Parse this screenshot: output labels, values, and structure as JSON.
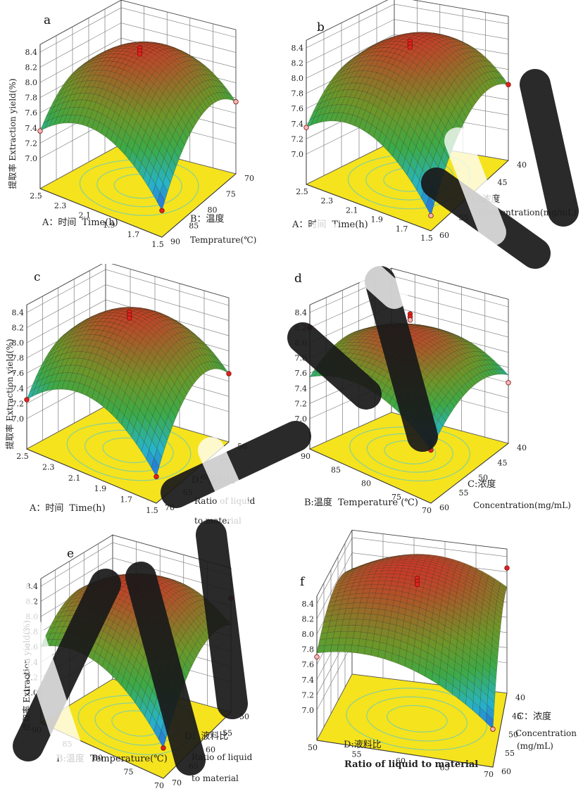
{
  "chart_data": [
    {
      "type": "surface3d",
      "panel": "a",
      "zlabel": "提取率 Extraction yield(%)",
      "zticks": [
        "7.0",
        "7.2",
        "7.4",
        "7.6",
        "7.8",
        "8.0",
        "8.2",
        "8.4"
      ],
      "zlim": [
        6.6,
        8.5
      ],
      "x_axis": {
        "label_cn": "A：时间",
        "label_en": "Time(h)",
        "ticks": [
          "2.5",
          "2.3",
          "2.1",
          "1.9",
          "1.7",
          "1.5"
        ],
        "range": [
          2.5,
          1.5
        ]
      },
      "y_axis": {
        "label_cn": "B：温度",
        "label_en": "Temprature(℃)",
        "ticks": [
          "90",
          "85",
          "80",
          "75",
          "70"
        ],
        "range": [
          90,
          70
        ]
      },
      "surface": {
        "peak": 8.32,
        "low_corner": 6.95,
        "left_corner": 7.36,
        "right_corner": 7.55,
        "back_corner": 7.5
      },
      "points": [
        {
          "z": 8.42,
          "pos": "peak",
          "tone": "red"
        },
        {
          "z": 8.38,
          "pos": "peak",
          "tone": "red"
        },
        {
          "z": 8.34,
          "pos": "peak",
          "tone": "red"
        },
        {
          "z": 6.95,
          "pos": "front",
          "tone": "red"
        },
        {
          "z": 7.36,
          "pos": "left",
          "tone": "pink"
        },
        {
          "z": 7.55,
          "pos": "right",
          "tone": "pink"
        }
      ]
    },
    {
      "type": "surface3d",
      "panel": "b",
      "zlabel": "提取率 Extraction yield(%)",
      "zticks": [
        "7.0",
        "7.2",
        "7.4",
        "7.6",
        "7.8",
        "8.0",
        "8.2",
        "8.4"
      ],
      "zlim": [
        6.6,
        8.5
      ],
      "x_axis": {
        "label_cn": "A：时间",
        "label_en": "Time(h)",
        "ticks": [
          "2.5",
          "2.3",
          "2.1",
          "1.9",
          "1.7",
          "1.5"
        ],
        "range": [
          2.5,
          1.5
        ]
      },
      "y_axis": {
        "label_cn": "C:浓度",
        "label_en": "Concentration(mg/mL)",
        "ticks": [
          "60",
          "55",
          "50",
          "45",
          "40"
        ],
        "range": [
          60,
          40
        ]
      },
      "surface": {
        "peak": 8.32,
        "low_corner": 6.8,
        "left_corner": 7.35,
        "right_corner": 7.6,
        "back_corner": 7.55
      },
      "points": [
        {
          "z": 8.42,
          "pos": "peak",
          "tone": "red"
        },
        {
          "z": 8.38,
          "pos": "peak",
          "tone": "red"
        },
        {
          "z": 8.34,
          "pos": "peak",
          "tone": "red"
        },
        {
          "z": 6.8,
          "pos": "front",
          "tone": "pink"
        },
        {
          "z": 7.35,
          "pos": "left",
          "tone": "pink"
        },
        {
          "z": 7.6,
          "pos": "right",
          "tone": "red"
        }
      ]
    },
    {
      "type": "surface3d",
      "panel": "c",
      "zlabel": "提取率 Extraction yield(%)",
      "zticks": [
        "7.0",
        "7.2",
        "7.4",
        "7.6",
        "7.8",
        "8.0",
        "8.2",
        "8.4"
      ],
      "zlim": [
        6.6,
        8.5
      ],
      "x_axis": {
        "label_cn": "A：时间",
        "label_en": "Time(h)",
        "ticks": [
          "2.5",
          "2.3",
          "2.1",
          "1.9",
          "1.7",
          "1.5"
        ],
        "range": [
          2.5,
          1.5
        ]
      },
      "y_axis": {
        "label_cn": "D：液料比",
        "label_en": "Ratio of liquid",
        "label_en2": "to material",
        "ticks": [
          "70",
          "65",
          "60",
          "55",
          "50"
        ],
        "range": [
          70,
          50
        ]
      },
      "surface": {
        "peak": 8.32,
        "low_corner": 6.95,
        "left_corner": 7.25,
        "right_corner": 7.5,
        "back_corner": 7.4
      },
      "points": [
        {
          "z": 8.42,
          "pos": "peak",
          "tone": "red"
        },
        {
          "z": 8.38,
          "pos": "peak",
          "tone": "red"
        },
        {
          "z": 8.34,
          "pos": "peak",
          "tone": "red"
        },
        {
          "z": 6.95,
          "pos": "front",
          "tone": "red"
        },
        {
          "z": 7.25,
          "pos": "left",
          "tone": "red"
        },
        {
          "z": 7.5,
          "pos": "right",
          "tone": "red"
        }
      ]
    },
    {
      "type": "surface3d",
      "panel": "d",
      "zlabel": "提取率 Extraction yield(%)",
      "zticks": [
        "7.0",
        "7.2",
        "7.4",
        "7.6",
        "7.8",
        "8.0",
        "8.2",
        "8.4"
      ],
      "zlim": [
        6.6,
        8.5
      ],
      "x_axis": {
        "label_cn": "B:温度",
        "label_en": "Temperature (℃)",
        "ticks": [
          "90",
          "85",
          "80",
          "75",
          "70"
        ],
        "range": [
          90,
          70
        ]
      },
      "y_axis": {
        "label_cn": "C:浓度",
        "label_en": "Concentration(mg/mL)",
        "ticks": [
          "60",
          "55",
          "50",
          "45",
          "40"
        ],
        "range": [
          60,
          40
        ]
      },
      "surface": {
        "peak": 8.1,
        "low_corner": 7.3,
        "left_corner": 7.55,
        "right_corner": 7.5,
        "back_corner": 7.6
      },
      "points": [
        {
          "z": 8.42,
          "pos": "peak",
          "tone": "red"
        },
        {
          "z": 8.38,
          "pos": "peak",
          "tone": "red"
        },
        {
          "z": 8.34,
          "pos": "peak",
          "tone": "pink"
        },
        {
          "z": 7.3,
          "pos": "front",
          "tone": "red"
        },
        {
          "z": 8.2,
          "pos": "left",
          "tone": "red"
        },
        {
          "z": 7.4,
          "pos": "right",
          "tone": "pink"
        }
      ]
    },
    {
      "type": "surface3d",
      "panel": "e",
      "zlabel": "提取率 Extraction yield(%)",
      "zticks": [
        "7.0",
        "7.2",
        "7.4",
        "7.6",
        "7.8",
        "8.0",
        "8.2",
        "8.4"
      ],
      "zlim": [
        6.6,
        8.5
      ],
      "x_axis": {
        "label_cn": "B:温度",
        "label_en": "Temperature(℃)",
        "ticks": [
          "90",
          "85",
          "80",
          "75",
          "70"
        ],
        "range": [
          90,
          70
        ]
      },
      "y_axis": {
        "label_cn": "D：液料比",
        "label_en": "Ratio of liquid",
        "label_en2": "to material",
        "ticks": [
          "70",
          "65",
          "60",
          "55",
          "50"
        ],
        "range": [
          70,
          50
        ]
      },
      "surface": {
        "peak": 8.32,
        "low_corner": 7.0,
        "left_corner": 7.6,
        "right_corner": 7.75,
        "back_corner": 7.7
      },
      "points": [
        {
          "z": 8.42,
          "pos": "peak",
          "tone": "red"
        },
        {
          "z": 8.38,
          "pos": "peak",
          "tone": "red"
        },
        {
          "z": 8.34,
          "pos": "peak",
          "tone": "red"
        },
        {
          "z": 7.0,
          "pos": "front",
          "tone": "red"
        },
        {
          "z": 8.1,
          "pos": "right",
          "tone": "red"
        }
      ]
    },
    {
      "type": "surface3d",
      "panel": "f",
      "zlabel": "提取率 Extraction yield(%)",
      "zticks": [
        "7.0",
        "7.2",
        "7.4",
        "7.6",
        "7.8",
        "8.0",
        "8.2",
        "8.4"
      ],
      "zlim": [
        6.6,
        8.5
      ],
      "x_axis": {
        "label_cn": "D:液料比",
        "label_en": "Ratio of liquid to material",
        "ticks": [
          "50",
          "55",
          "60",
          "65",
          "70"
        ],
        "range": [
          50,
          70
        ]
      },
      "y_axis": {
        "label_cn": "C：浓度",
        "label_en": "Concentration",
        "label_en2": "(mg/mL)",
        "ticks": [
          "60",
          "55",
          "50",
          "45",
          "40"
        ],
        "range": [
          60,
          40
        ]
      },
      "surface": {
        "peak": 8.35,
        "low_corner": 7.1,
        "left_corner": 7.75,
        "right_corner": 8.0,
        "back_corner": 7.95
      },
      "points": [
        {
          "z": 8.45,
          "pos": "peak",
          "tone": "red"
        },
        {
          "z": 8.41,
          "pos": "peak",
          "tone": "red"
        },
        {
          "z": 8.37,
          "pos": "peak",
          "tone": "red"
        },
        {
          "z": 7.1,
          "pos": "front",
          "tone": "pink"
        },
        {
          "z": 7.7,
          "pos": "left",
          "tone": "pink"
        },
        {
          "z": 8.25,
          "pos": "right",
          "tone": "red"
        }
      ]
    }
  ]
}
